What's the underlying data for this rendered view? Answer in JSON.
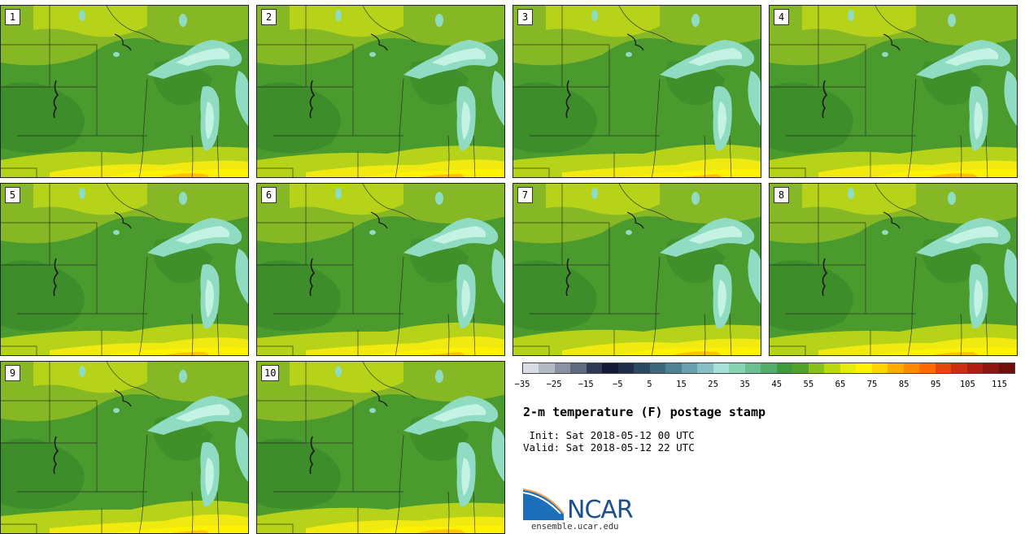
{
  "title": "2-m temperature (F) postage stamp",
  "init_line": " Init: Sat 2018-05-12 00 UTC",
  "valid_line": "Valid: Sat 2018-05-12 22 UTC",
  "logo": {
    "name": "NCAR",
    "url": "ensemble.ucar.edu"
  },
  "stamps": [
    "1",
    "2",
    "3",
    "4",
    "5",
    "6",
    "7",
    "8",
    "9",
    "10"
  ],
  "legend": {
    "min": -35,
    "max": 125,
    "ticks": [
      "−35",
      "−25",
      "−15",
      "−5",
      "5",
      "15",
      "25",
      "35",
      "45",
      "55",
      "65",
      "75",
      "85",
      "95",
      "105",
      "115"
    ],
    "tick_values": [
      -35,
      -25,
      -15,
      -5,
      5,
      15,
      25,
      35,
      45,
      55,
      65,
      75,
      85,
      95,
      105,
      115
    ],
    "colors": [
      "#d9dde3",
      "#b3bac4",
      "#8a93a1",
      "#5e6a7d",
      "#2e3a52",
      "#121b33",
      "#1d2e46",
      "#2c4a5e",
      "#3e6778",
      "#4f8290",
      "#67a0aa",
      "#86c0c2",
      "#a6e0d6",
      "#87d4b5",
      "#6cbf90",
      "#54ad6c",
      "#3f9a3d",
      "#52a22a",
      "#89c01a",
      "#bcd811",
      "#e6ea0e",
      "#fff200",
      "#ffd400",
      "#ffaa00",
      "#ff8a00",
      "#ff6a00",
      "#e6470c",
      "#cc2e10",
      "#b01d12",
      "#8f1510",
      "#6e0f0c"
    ]
  },
  "map_colors": {
    "base": "#4a9a2e",
    "dark": "#3b8a2a",
    "warm_light": "#86b826",
    "warm_yellow_green": "#b6d31a",
    "yellow": "#f0ea10",
    "bright_yellow": "#fff200",
    "orange": "#ffc400",
    "lake": "#8fdcc3",
    "lake_light": "#c4f2e4"
  }
}
